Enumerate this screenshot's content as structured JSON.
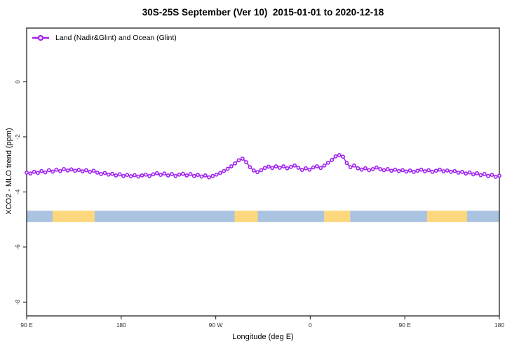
{
  "title": "30S-25S September (Ver 10)  2015-01-01 to 2020-12-18",
  "legend": {
    "label": "Land (Nadir&Glint) and Ocean (Glint)"
  },
  "axes": {
    "x_label": "Longitude (deg E)",
    "y_label": "XCO2 - MLO trend (ppm)",
    "x_ticks": [
      {
        "lon": 90,
        "label": "90 E"
      },
      {
        "lon": 180,
        "label": "180"
      },
      {
        "lon": 270,
        "label": "90 W"
      },
      {
        "lon": 360,
        "label": "0"
      },
      {
        "lon": 450,
        "label": "90 E"
      },
      {
        "lon": 540,
        "label": "180"
      }
    ],
    "y_ticks": [
      {
        "value": 0,
        "label": "0"
      },
      {
        "value": -2,
        "label": "-2"
      },
      {
        "value": -4,
        "label": "-4"
      },
      {
        "value": -6,
        "label": "-6"
      },
      {
        "value": -8,
        "label": "-8"
      }
    ]
  },
  "colors": {
    "series": "#A020F0",
    "marker_fill": "#ffffff",
    "box": "#333333",
    "tick_text": "#333333",
    "ocean_band": "#A9C3E1",
    "land_band": "#FCD77D"
  },
  "chart_data": {
    "type": "line",
    "title": "30S-25S September (Ver 10)  2015-01-01 to 2020-12-18",
    "xlabel": "Longitude (deg E)",
    "ylabel": "XCO2 - MLO trend (ppm)",
    "xlim": [
      90,
      540
    ],
    "ylim": [
      -8.5,
      1.95
    ],
    "x_axis_note": "longitude wraps: 90E -> 180 -> 90W -> 0 -> 90E -> 180",
    "grid": false,
    "legend_position": "top-left-inside",
    "series": [
      {
        "name": "Land (Nadir&Glint) and Ocean (Glint)",
        "marker": "open-circle",
        "lon_start": 90,
        "lon_end": 540,
        "values": [
          -3.3,
          -3.33,
          -3.27,
          -3.31,
          -3.24,
          -3.29,
          -3.21,
          -3.26,
          -3.19,
          -3.24,
          -3.17,
          -3.22,
          -3.18,
          -3.23,
          -3.2,
          -3.25,
          -3.21,
          -3.27,
          -3.23,
          -3.3,
          -3.35,
          -3.31,
          -3.37,
          -3.34,
          -3.4,
          -3.36,
          -3.42,
          -3.38,
          -3.43,
          -3.39,
          -3.44,
          -3.4,
          -3.37,
          -3.42,
          -3.36,
          -3.32,
          -3.38,
          -3.33,
          -3.4,
          -3.35,
          -3.42,
          -3.37,
          -3.34,
          -3.4,
          -3.35,
          -3.42,
          -3.38,
          -3.44,
          -3.4,
          -3.47,
          -3.42,
          -3.37,
          -3.31,
          -3.24,
          -3.16,
          -3.07,
          -2.96,
          -2.85,
          -2.79,
          -2.92,
          -3.1,
          -3.22,
          -3.28,
          -3.21,
          -3.13,
          -3.08,
          -3.13,
          -3.07,
          -3.12,
          -3.07,
          -3.14,
          -3.09,
          -3.04,
          -3.12,
          -3.2,
          -3.14,
          -3.19,
          -3.11,
          -3.07,
          -3.13,
          -3.04,
          -2.94,
          -2.84,
          -2.71,
          -2.66,
          -2.72,
          -2.95,
          -3.1,
          -3.04,
          -3.14,
          -3.19,
          -3.14,
          -3.21,
          -3.17,
          -3.11,
          -3.17,
          -3.21,
          -3.17,
          -3.23,
          -3.19,
          -3.24,
          -3.21,
          -3.26,
          -3.22,
          -3.27,
          -3.23,
          -3.19,
          -3.25,
          -3.21,
          -3.27,
          -3.23,
          -3.19,
          -3.25,
          -3.22,
          -3.27,
          -3.24,
          -3.3,
          -3.27,
          -3.33,
          -3.29,
          -3.36,
          -3.32,
          -3.39,
          -3.35,
          -3.42,
          -3.38,
          -3.45,
          -3.41
        ]
      }
    ],
    "surface_band": {
      "description": "ocean/land strip along longitude",
      "y_top": -4.68,
      "y_bottom": -5.09,
      "segments": [
        {
          "type": "ocean",
          "from": 90,
          "to": 114.7
        },
        {
          "type": "land",
          "from": 114.7,
          "to": 154.7
        },
        {
          "type": "ocean",
          "from": 154.7,
          "to": 288
        },
        {
          "type": "land",
          "from": 288,
          "to": 310
        },
        {
          "type": "ocean",
          "from": 310,
          "to": 373.3
        },
        {
          "type": "land",
          "from": 373.3,
          "to": 398
        },
        {
          "type": "ocean",
          "from": 398,
          "to": 471.3
        },
        {
          "type": "land",
          "from": 471.3,
          "to": 509.3
        },
        {
          "type": "ocean",
          "from": 509.3,
          "to": 540
        }
      ]
    }
  }
}
